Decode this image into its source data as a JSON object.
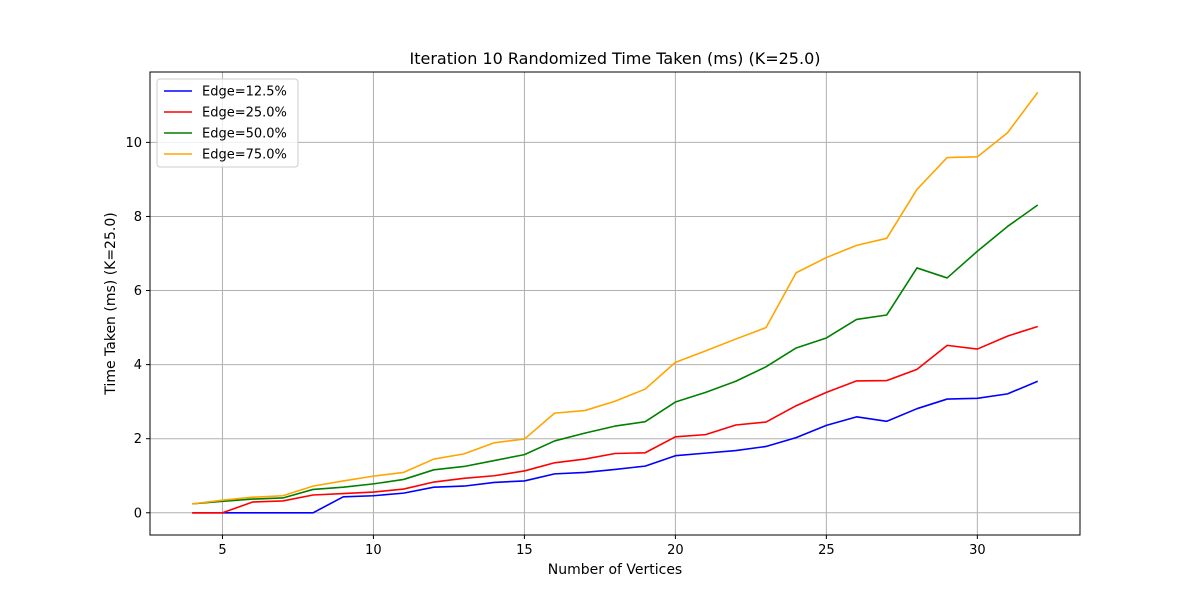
{
  "chart_data": {
    "type": "line",
    "title": "Iteration 10 Randomized Time Taken (ms) (K=25.0)",
    "xlabel": "Number of Vertices",
    "ylabel": "Time Taken (ms) (K=25.0)",
    "xlim": [
      2.6,
      33.4
    ],
    "ylim": [
      -0.6,
      11.9
    ],
    "xticks": [
      5,
      10,
      15,
      20,
      25,
      30
    ],
    "yticks": [
      0,
      2,
      4,
      6,
      8,
      10
    ],
    "grid": true,
    "legend_position": "top-left",
    "x": [
      4,
      5,
      6,
      7,
      8,
      9,
      10,
      11,
      12,
      13,
      14,
      15,
      16,
      17,
      18,
      19,
      20,
      21,
      22,
      23,
      24,
      25,
      26,
      27,
      28,
      29,
      30,
      31,
      32
    ],
    "series": [
      {
        "name": "Edge=12.5%",
        "color": "#0000ff",
        "values": [
          0,
          0,
          0,
          0,
          0,
          0.43,
          0.46,
          0.53,
          0.69,
          0.72,
          0.82,
          0.86,
          1.05,
          1.09,
          1.17,
          1.26,
          1.54,
          1.61,
          1.68,
          1.79,
          2.03,
          2.36,
          2.59,
          2.47,
          2.81,
          3.07,
          3.09,
          3.21,
          3.55
        ]
      },
      {
        "name": "Edge=25.0%",
        "color": "#ff0000",
        "values": [
          0,
          0,
          0.29,
          0.32,
          0.48,
          0.52,
          0.56,
          0.64,
          0.83,
          0.93,
          1.0,
          1.13,
          1.35,
          1.45,
          1.6,
          1.62,
          2.05,
          2.11,
          2.37,
          2.45,
          2.89,
          3.25,
          3.56,
          3.57,
          3.87,
          4.52,
          4.42,
          4.77,
          5.03
        ]
      },
      {
        "name": "Edge=50.0%",
        "color": "#008000",
        "values": [
          0.24,
          0.31,
          0.37,
          0.4,
          0.63,
          0.69,
          0.78,
          0.9,
          1.16,
          1.25,
          1.41,
          1.57,
          1.94,
          2.15,
          2.34,
          2.46,
          2.99,
          3.25,
          3.55,
          3.94,
          4.45,
          4.72,
          5.22,
          5.34,
          6.61,
          6.34,
          7.06,
          7.73,
          8.31
        ]
      },
      {
        "name": "Edge=75.0%",
        "color": "#ffa500",
        "values": [
          0.24,
          0.34,
          0.42,
          0.46,
          0.72,
          0.86,
          0.99,
          1.09,
          1.45,
          1.59,
          1.89,
          1.99,
          2.69,
          2.76,
          3.01,
          3.34,
          4.06,
          4.37,
          4.69,
          5.0,
          6.48,
          6.89,
          7.22,
          7.41,
          8.73,
          9.59,
          9.61,
          10.26,
          11.35
        ]
      }
    ]
  }
}
